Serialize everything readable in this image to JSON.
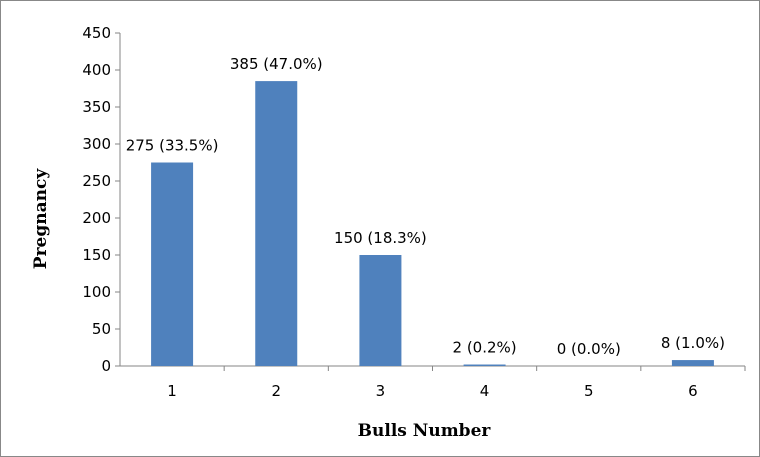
{
  "chart_data": {
    "type": "bar",
    "categories": [
      "1",
      "2",
      "3",
      "4",
      "5",
      "6"
    ],
    "values": [
      275,
      385,
      150,
      2,
      0,
      8
    ],
    "data_labels": [
      "275 (33.5%)",
      "385 (47.0%)",
      "150 (18.3%)",
      "2 (0.2%)",
      "0 (0.0%)",
      "8 (1.0%)"
    ],
    "title": "",
    "xlabel": "Bulls Number",
    "ylabel": "Pregnancy",
    "ylim": [
      0,
      450
    ],
    "yticks": [
      "0",
      "50",
      "100",
      "150",
      "200",
      "250",
      "300",
      "350",
      "400",
      "450"
    ],
    "grid": false,
    "legend": "none",
    "bar_color": "#4F81BD"
  }
}
